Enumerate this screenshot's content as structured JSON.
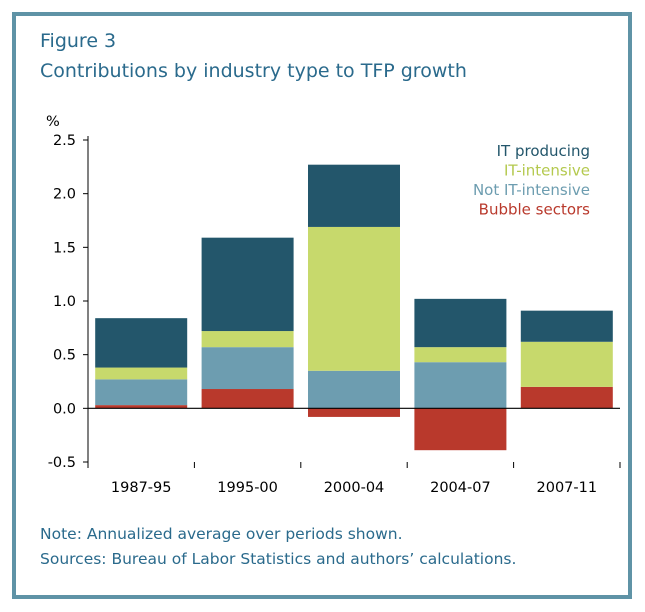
{
  "figure_number": "Figure 3",
  "colors": {
    "frame": "#5f93a6",
    "title_text": "#2a6a8c",
    "it_producing": "#23566b",
    "it_intensive": "#c7d96c",
    "not_it_intensive": "#6d9db0",
    "bubble_sectors": "#b9392c"
  },
  "chart_data": {
    "type": "bar",
    "stacked": true,
    "title": "Contributions by industry type to TFP growth",
    "ylabel": "%",
    "xlabel": "",
    "ylim": [
      -0.5,
      2.5
    ],
    "yticks": [
      "2.5",
      "2.0",
      "1.5",
      "1.0",
      "0.5",
      "0.0",
      "-0.5"
    ],
    "ytick_values": [
      2.5,
      2.0,
      1.5,
      1.0,
      0.5,
      0.0,
      -0.5
    ],
    "categories": [
      "1987-95",
      "1995-00",
      "2000-04",
      "2004-07",
      "2007-11"
    ],
    "series": [
      {
        "name": "Bubble sectors",
        "color": "#b9392c",
        "values": [
          0.03,
          0.18,
          -0.08,
          -0.39,
          0.2
        ]
      },
      {
        "name": "Not IT-intensive",
        "color": "#6d9db0",
        "values": [
          0.24,
          0.39,
          0.35,
          0.43,
          0.0
        ]
      },
      {
        "name": "IT-intensive",
        "color": "#c7d96c",
        "values": [
          0.11,
          0.15,
          1.34,
          0.14,
          0.42
        ]
      },
      {
        "name": "IT producing",
        "color": "#23566b",
        "values": [
          0.46,
          0.87,
          0.58,
          0.45,
          0.29
        ]
      }
    ],
    "legend": {
      "position": "top-right",
      "entries": [
        {
          "label": "IT producing",
          "color": "#23566b"
        },
        {
          "label": "IT-intensive",
          "color": "#b4c94e"
        },
        {
          "label": "Not IT-intensive",
          "color": "#6d9db0"
        },
        {
          "label": "Bubble sectors",
          "color": "#b9392c"
        }
      ]
    },
    "grid": false
  },
  "notes": {
    "note": "Note: Annualized average over periods shown.",
    "sources": "Sources: Bureau of Labor Statistics and authors’ calculations."
  }
}
